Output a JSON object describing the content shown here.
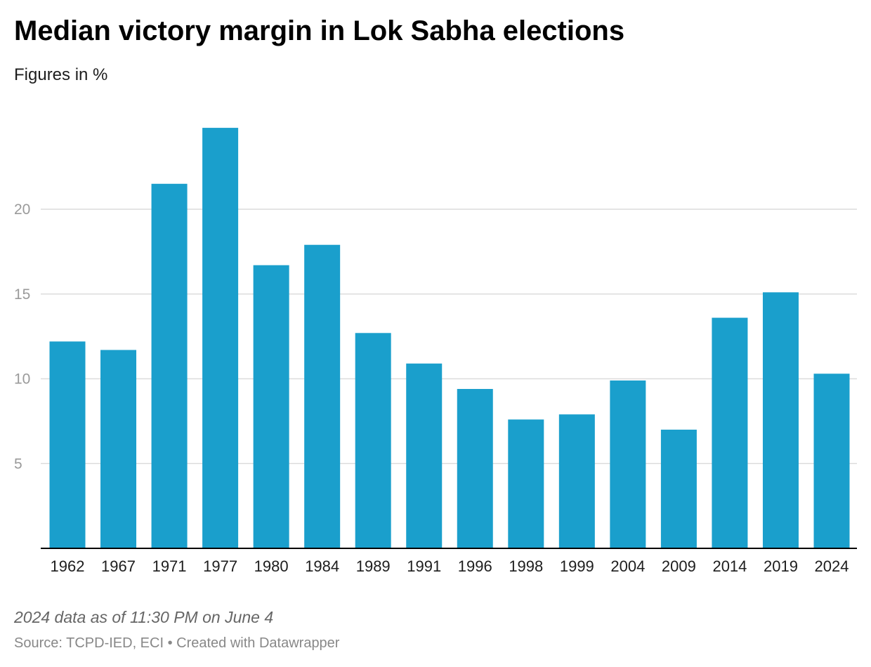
{
  "chart_data": {
    "type": "bar",
    "title": "Median victory margin in Lok Sabha elections",
    "subtitle": "Figures in %",
    "categories": [
      "1962",
      "1967",
      "1971",
      "1977",
      "1980",
      "1984",
      "1989",
      "1991",
      "1996",
      "1998",
      "1999",
      "2004",
      "2009",
      "2014",
      "2019",
      "2024"
    ],
    "values": [
      12.2,
      11.7,
      21.5,
      24.8,
      16.7,
      17.9,
      12.7,
      10.9,
      9.4,
      7.6,
      7.9,
      9.9,
      7.0,
      13.6,
      15.1,
      10.3
    ],
    "yticks": [
      "5",
      "10",
      "15",
      "20"
    ],
    "ylim": [
      0,
      25
    ],
    "bar_color": "#1a9fcc",
    "grid": true,
    "note": "2024 data as of 11:30 PM on June 4",
    "source": "Source: TCPD-IED, ECI • Created with Datawrapper"
  }
}
